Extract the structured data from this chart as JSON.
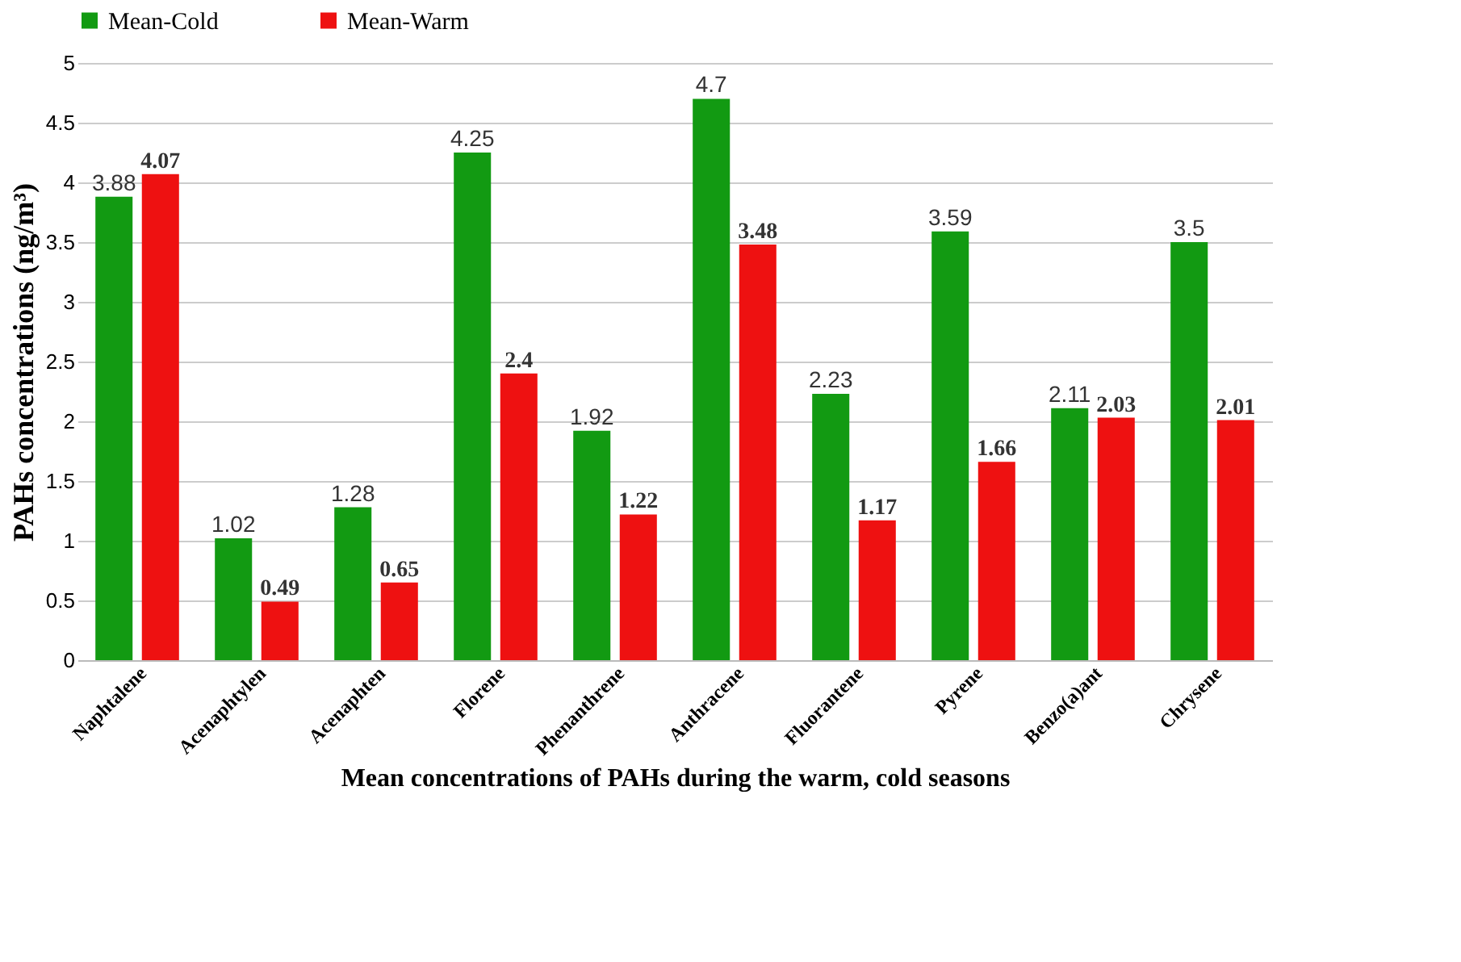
{
  "chart_data": {
    "type": "bar",
    "xlabel": "Mean concentrations of PAHs during the warm, cold seasons",
    "ylabel": "PAHs concentrations (ng/m³)",
    "categories": [
      "Naphtalene",
      "Acenaphtylen",
      "Acenaphten",
      "Florene",
      "Phenanthrene",
      "Anthracene",
      "Fluorantene",
      "Pyrene",
      "Benzo(a)ant",
      "Chrysene"
    ],
    "series": [
      {
        "name": "Mean-Cold",
        "color": "#129a12",
        "values": [
          3.88,
          1.02,
          1.28,
          4.25,
          1.92,
          4.7,
          2.23,
          3.59,
          2.11,
          3.5
        ]
      },
      {
        "name": "Mean-Warm",
        "color": "#ee1111",
        "values": [
          4.07,
          0.49,
          0.65,
          2.4,
          1.22,
          3.48,
          1.17,
          1.66,
          2.03,
          2.01
        ]
      }
    ],
    "ylim": [
      0,
      5
    ],
    "yticks": [
      0,
      0.5,
      1,
      1.5,
      2,
      2.5,
      3,
      3.5,
      4,
      4.5,
      5
    ],
    "grid": "y",
    "legend": "top",
    "data_labels": true
  }
}
